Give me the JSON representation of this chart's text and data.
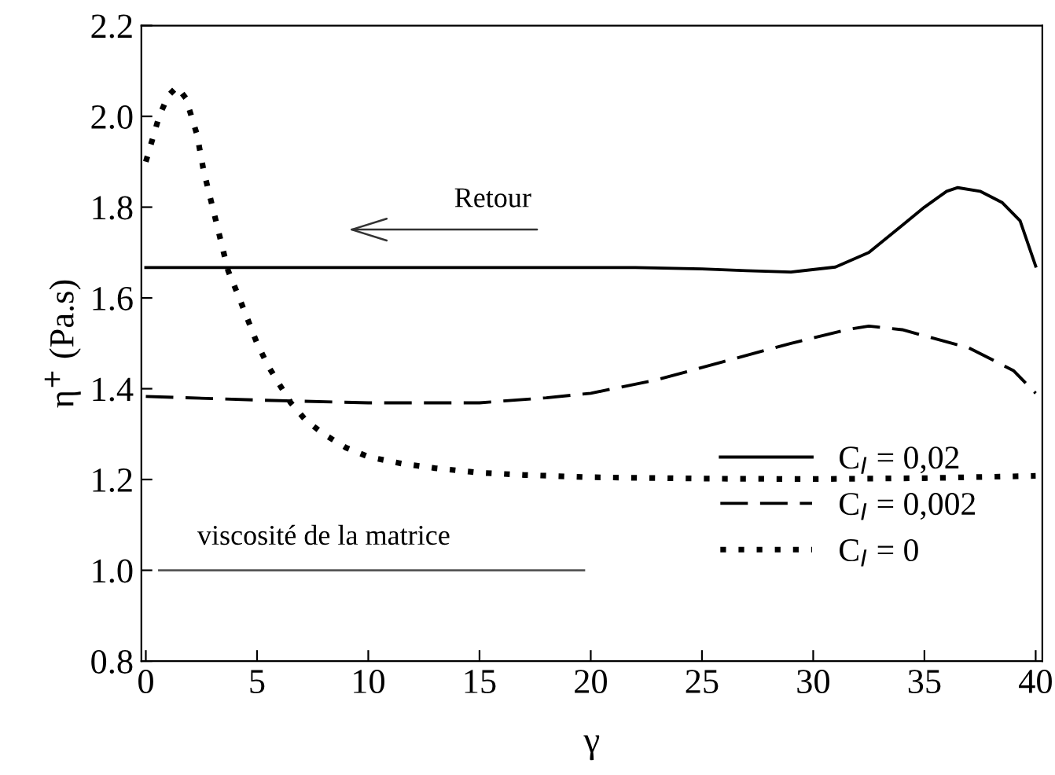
{
  "chart_data": {
    "type": "line",
    "xlabel": "γ",
    "ylabel": "η$^{+}$ (Pa.s)",
    "xlim": [
      -0.2,
      40.3
    ],
    "ylim": [
      0.8,
      2.2
    ],
    "xticks": [
      0,
      5,
      10,
      15,
      20,
      25,
      30,
      35,
      40
    ],
    "yticks": [
      {
        "value": 0.8,
        "label": "0.8"
      },
      {
        "value": 1.0,
        "label": "1.0"
      },
      {
        "value": 1.2,
        "label": "1.2"
      },
      {
        "value": 1.4,
        "label": "1.4"
      },
      {
        "value": 1.6,
        "label": "1.6"
      },
      {
        "value": 1.8,
        "label": "1.8"
      },
      {
        "value": 2.0,
        "label": "2.0"
      },
      {
        "value": 2.2,
        "label": "2.2"
      }
    ],
    "grid": false,
    "legend": "bottom right",
    "series": [
      {
        "name": "C$_{I}$ = 0,02",
        "color": "#000000",
        "line_style": "solid",
        "x": [
          0,
          5,
          10,
          15,
          20,
          22,
          25,
          27,
          29,
          31,
          32.5,
          34,
          35,
          36,
          36.5,
          37.5,
          38.5,
          39.3,
          40
        ],
        "values": [
          1.667,
          1.667,
          1.667,
          1.667,
          1.667,
          1.667,
          1.664,
          1.66,
          1.657,
          1.668,
          1.7,
          1.76,
          1.8,
          1.835,
          1.843,
          1.835,
          1.81,
          1.77,
          1.67
        ]
      },
      {
        "name": "C$_{I}$ = 0,002",
        "color": "#000000",
        "line_style": "dashed",
        "x": [
          0,
          5,
          10,
          15,
          18,
          20,
          23,
          26,
          29,
          31.5,
          32.5,
          34,
          37,
          39,
          40
        ],
        "values": [
          1.383,
          1.375,
          1.369,
          1.369,
          1.38,
          1.39,
          1.42,
          1.46,
          1.5,
          1.53,
          1.538,
          1.53,
          1.49,
          1.44,
          1.39
        ]
      },
      {
        "name": "C$_{I}$ = 0",
        "color": "#000000",
        "line_style": "dotted",
        "x": [
          0,
          0.3,
          0.6,
          1.0,
          1.4,
          1.8,
          2.3,
          2.6,
          3.0,
          3.4,
          3.7,
          4.2,
          4.6,
          5.0,
          5.5,
          6.0,
          6.5,
          7.2,
          8,
          9,
          10,
          11.5,
          13,
          15,
          17,
          20,
          25,
          30,
          35,
          40
        ],
        "values": [
          1.9,
          1.95,
          2.0,
          2.045,
          2.065,
          2.04,
          1.96,
          1.88,
          1.8,
          1.72,
          1.66,
          1.6,
          1.55,
          1.5,
          1.45,
          1.41,
          1.37,
          1.33,
          1.3,
          1.27,
          1.25,
          1.235,
          1.225,
          1.215,
          1.21,
          1.205,
          1.202,
          1.201,
          1.203,
          1.208
        ]
      },
      {
        "color": "#555555",
        "line_style": "solid",
        "x": [
          0.6,
          19.7
        ],
        "values": [
          1.0,
          1.0
        ]
      }
    ],
    "annotations": [
      {
        "text": "viscosité de la matrice",
        "x": 8,
        "y": 1.0
      },
      "Retour"
    ]
  }
}
